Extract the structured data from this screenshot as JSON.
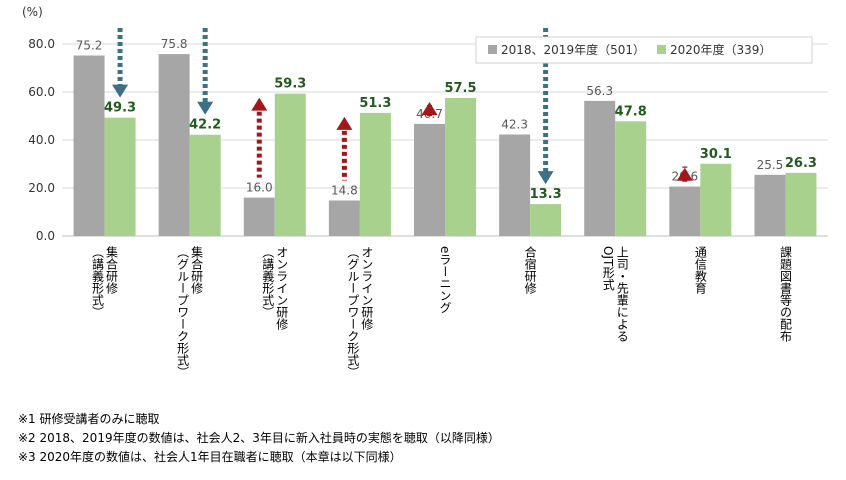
{
  "chart_data": {
    "type": "bar",
    "ylabel": "(%)",
    "ylim": [
      0,
      80
    ],
    "yticks": [
      "0.0",
      "20.0",
      "40.0",
      "60.0",
      "80.0"
    ],
    "categories": [
      [
        "集合研修",
        "（講義形式）"
      ],
      [
        "集合研修",
        "（グループワーク形式）"
      ],
      [
        "オンライン研修",
        "（講義形式）"
      ],
      [
        "オンライン研修",
        "（グループワーク形式）"
      ],
      [
        "eラーニング"
      ],
      [
        "合宿研修"
      ],
      [
        "上司・先輩による",
        "OJT形式"
      ],
      [
        "通信教育"
      ],
      [
        "課題図書等の配布"
      ]
    ],
    "series": [
      {
        "name": "2018、2019年度（501）",
        "color": "#a6a6a6",
        "values": [
          75.2,
          75.8,
          16.0,
          14.8,
          46.7,
          42.3,
          56.3,
          20.6,
          25.5
        ],
        "labels": [
          "75.2",
          "75.8",
          "16.0",
          "14.8",
          "46.7",
          "42.3",
          "56.3",
          "20.6",
          "25.5"
        ]
      },
      {
        "name": "2020年度（339）",
        "color": "#a9d18e",
        "values": [
          49.3,
          42.2,
          59.3,
          51.3,
          57.5,
          13.3,
          47.8,
          30.1,
          26.3
        ],
        "labels": [
          "49.3",
          "42.2",
          "59.3",
          "51.3",
          "57.5",
          "13.3",
          "47.8",
          "30.1",
          "26.3"
        ]
      }
    ],
    "arrows": [
      {
        "direction": "down",
        "color": "#3d7085"
      },
      {
        "direction": "down",
        "color": "#3d7085"
      },
      {
        "direction": "up",
        "color": "#a4161a"
      },
      {
        "direction": "up",
        "color": "#a4161a"
      },
      {
        "direction": "up",
        "color": "#a4161a"
      },
      {
        "direction": "down",
        "color": "#3d7085"
      },
      null,
      {
        "direction": "up",
        "color": "#a4161a"
      },
      null
    ],
    "grid": true,
    "legend_position": "top-right"
  },
  "notes": [
    "※1 研修受講者のみに聴取",
    "※2 2018、2019年度の数値は、社会人2、3年目に新入社員時の実態を聴取（以降同様）",
    "※3 2020年度の数値は、社会人1年目在職者に聴取（本章は以下同様）"
  ]
}
